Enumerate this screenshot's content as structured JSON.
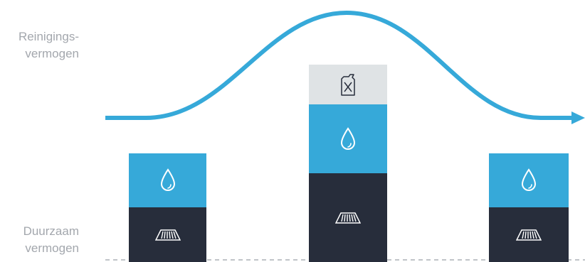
{
  "labels": {
    "top_line1": "Reinigings-",
    "top_line2": "vermogen",
    "bottom_line1": "Duurzaam",
    "bottom_line2": "vermogen"
  },
  "colors": {
    "curve": "#36a9d9",
    "water_block": "#36a9d9",
    "base_block": "#272d3b",
    "chemical_block": "#dfe3e5",
    "baseline": "#9aa0a6",
    "icon_light": "#ffffff",
    "icon_dark": "#272d3b"
  },
  "columns": [
    {
      "name": "left",
      "blocks": [
        "water-drop-icon",
        "floor-pad-icon"
      ]
    },
    {
      "name": "center",
      "blocks": [
        "chemical-canister-icon",
        "water-drop-icon",
        "floor-pad-icon"
      ]
    },
    {
      "name": "right",
      "blocks": [
        "water-drop-icon",
        "floor-pad-icon"
      ]
    }
  ]
}
